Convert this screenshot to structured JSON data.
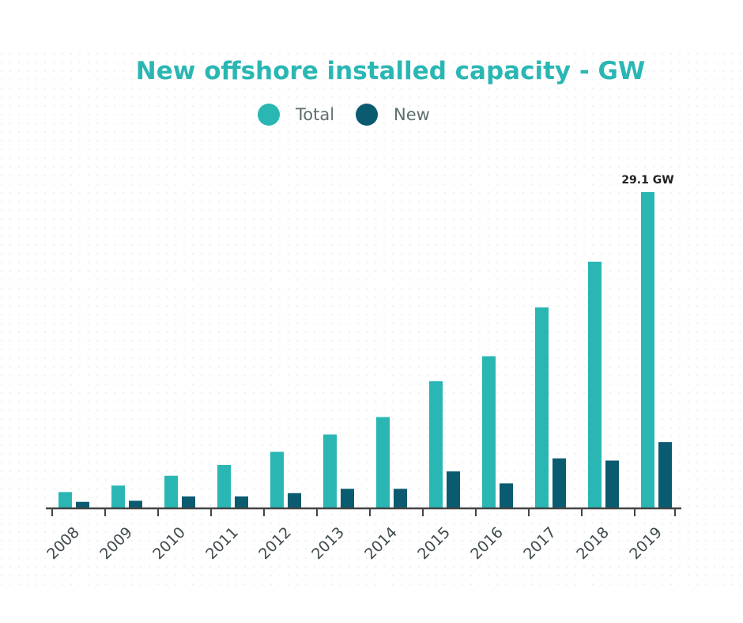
{
  "chart_data": {
    "type": "bar",
    "title": "New offshore installed capacity - GW",
    "xlabel": "",
    "ylabel": "",
    "categories": [
      "2008",
      "2009",
      "2010",
      "2011",
      "2012",
      "2013",
      "2014",
      "2015",
      "2016",
      "2017",
      "2018",
      "2019"
    ],
    "series": [
      {
        "name": "Total",
        "color": "#2ab7b4",
        "values": [
          1.5,
          2.1,
          3.0,
          4.0,
          5.2,
          6.8,
          8.4,
          11.7,
          14.0,
          18.5,
          22.7,
          29.1
        ]
      },
      {
        "name": "New",
        "color": "#0b5b70",
        "values": [
          0.6,
          0.7,
          1.1,
          1.1,
          1.4,
          1.8,
          1.8,
          3.4,
          2.3,
          4.6,
          4.4,
          6.1
        ]
      }
    ],
    "ylim": [
      0,
      30
    ],
    "grid": false,
    "legend_position": "top",
    "annotations": [
      {
        "category": "2019",
        "series": "Total",
        "text": "29.1 GW"
      }
    ]
  }
}
